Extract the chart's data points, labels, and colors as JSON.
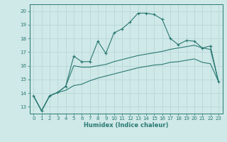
{
  "xlabel": "Humidex (Indice chaleur)",
  "background_color": "#cfe8e8",
  "grid_color": "#b8d8d8",
  "line_color": "#2a7a72",
  "x_values": [
    0,
    1,
    2,
    3,
    4,
    5,
    6,
    7,
    8,
    9,
    10,
    11,
    12,
    13,
    14,
    15,
    16,
    17,
    18,
    19,
    20,
    21,
    22,
    23
  ],
  "y_main": [
    13.8,
    12.7,
    13.8,
    14.05,
    14.5,
    16.7,
    16.3,
    16.3,
    17.8,
    16.9,
    18.4,
    18.7,
    19.2,
    19.85,
    19.85,
    19.75,
    19.4,
    18.0,
    17.55,
    17.85,
    17.8,
    17.3,
    17.45,
    14.85
  ],
  "y_upper": [
    13.8,
    12.7,
    13.8,
    14.05,
    14.5,
    16.0,
    15.9,
    15.9,
    16.0,
    16.1,
    16.3,
    16.45,
    16.6,
    16.75,
    16.85,
    16.95,
    17.05,
    17.2,
    17.3,
    17.4,
    17.5,
    17.3,
    17.2,
    14.85
  ],
  "y_lower": [
    13.8,
    12.7,
    13.8,
    14.05,
    14.2,
    14.55,
    14.65,
    14.9,
    15.1,
    15.25,
    15.4,
    15.55,
    15.7,
    15.85,
    15.95,
    16.05,
    16.1,
    16.25,
    16.3,
    16.4,
    16.5,
    16.25,
    16.15,
    14.85
  ],
  "xlim": [
    -0.5,
    23.5
  ],
  "ylim": [
    12.5,
    20.5
  ],
  "yticks": [
    13,
    14,
    15,
    16,
    17,
    18,
    19,
    20
  ],
  "xticks": [
    0,
    1,
    2,
    3,
    4,
    5,
    6,
    7,
    8,
    9,
    10,
    11,
    12,
    13,
    14,
    15,
    16,
    17,
    18,
    19,
    20,
    21,
    22,
    23
  ]
}
